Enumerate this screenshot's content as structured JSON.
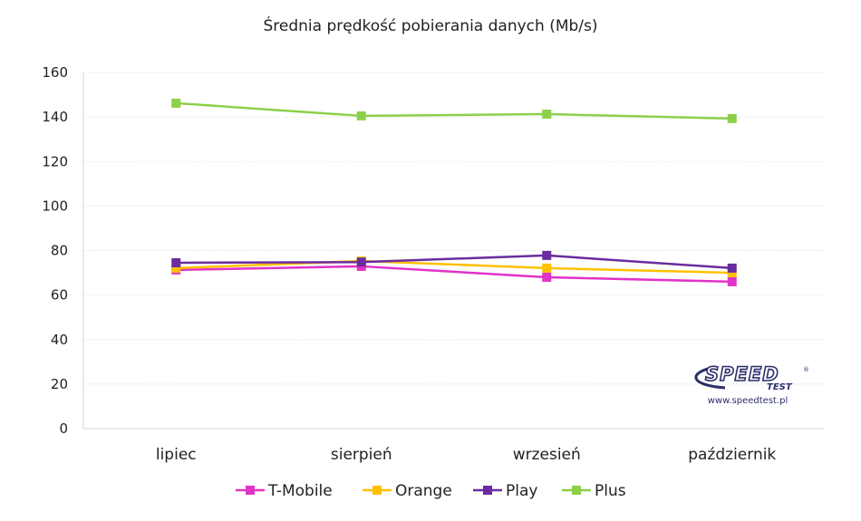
{
  "chart_data": {
    "type": "line",
    "title": "Średnia prędkość pobierania danych (Mb/s)",
    "xlabel": "",
    "ylabel": "",
    "ylim": [
      0,
      160
    ],
    "yticks": [
      0,
      20,
      40,
      60,
      80,
      100,
      120,
      140,
      160
    ],
    "grid": true,
    "legend": "bottom",
    "categories": [
      "lipiec",
      "sierpień",
      "wrzesień",
      "październik"
    ],
    "series": [
      {
        "name": "T-Mobile",
        "color": "#e033c8",
        "values": [
          71.3,
          72.9,
          68.0,
          66.0
        ]
      },
      {
        "name": "Orange",
        "color": "#ffc000",
        "values": [
          72.1,
          75.3,
          72.1,
          70.0
        ]
      },
      {
        "name": "Play",
        "color": "#6a2c9e",
        "values": [
          74.5,
          74.8,
          77.8,
          72.1
        ]
      },
      {
        "name": "Plus",
        "color": "#8cd04a",
        "values": [
          146.2,
          140.5,
          141.3,
          139.3
        ]
      }
    ]
  },
  "watermark": {
    "brand": "SPEED",
    "sub": "TEST",
    "registered": "®",
    "url": "www.speedtest.pl"
  }
}
